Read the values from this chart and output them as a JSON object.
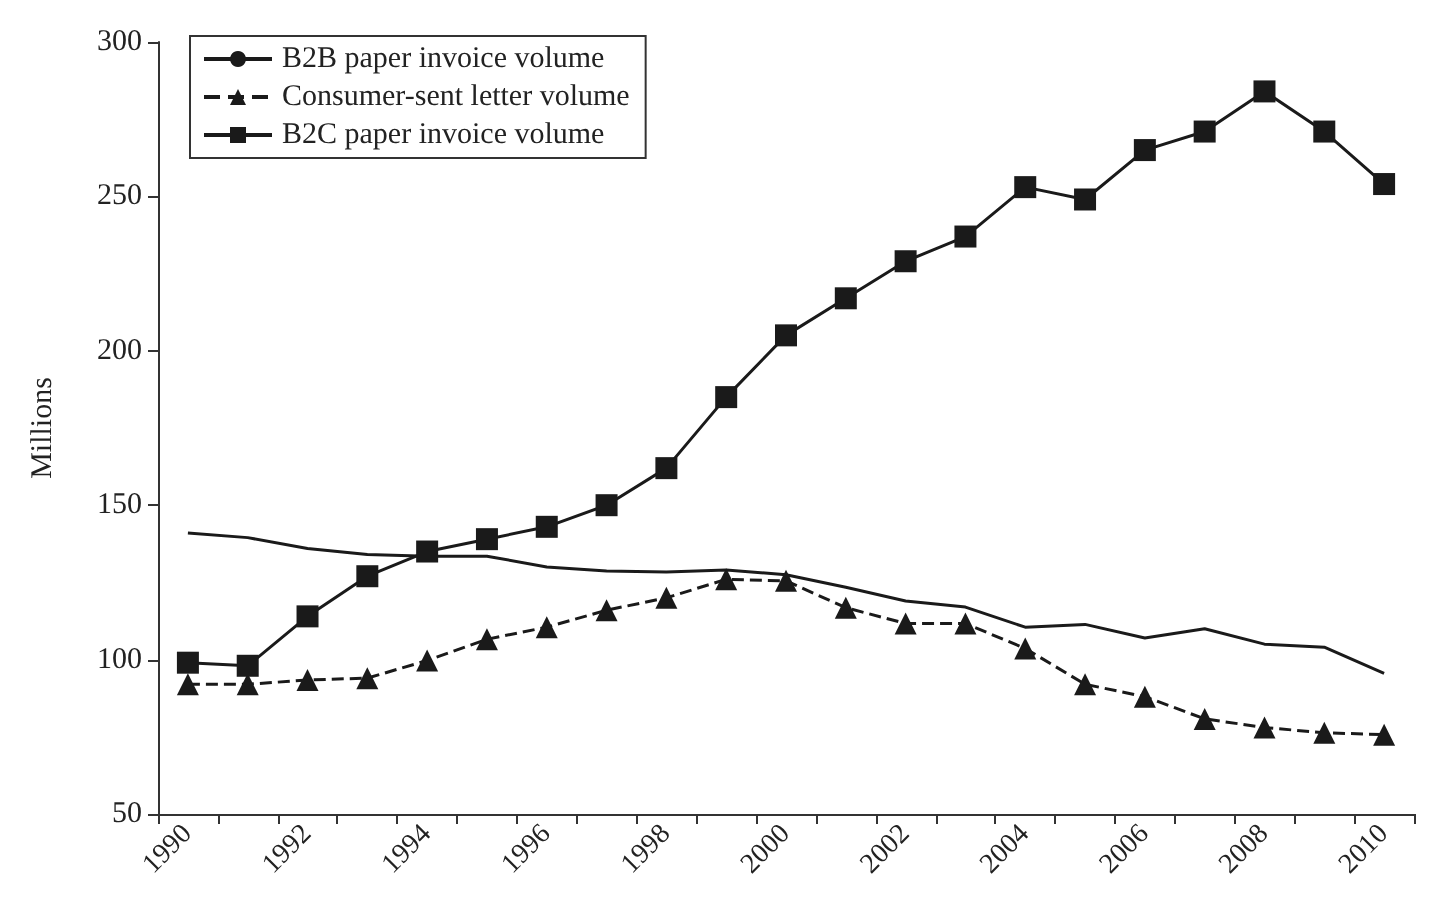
{
  "chart_data": {
    "type": "line",
    "ylabel": "Millions",
    "categories": [
      "1990",
      null,
      "1992",
      null,
      "1994",
      null,
      "1996",
      null,
      "1998",
      null,
      "2000",
      null,
      "2002",
      null,
      "2004",
      null,
      "2006",
      null,
      "2008",
      null,
      "2010"
    ],
    "ylim": [
      50,
      300
    ],
    "yticks": [
      50,
      100,
      150,
      200,
      250,
      300
    ],
    "grid": false,
    "legend": "top left",
    "series": [
      {
        "name": "B2B paper invoice volume",
        "color": "#1a1a1a",
        "marker": "none",
        "line_style": "solid",
        "values": [
          141,
          139.5,
          136,
          134,
          133.5,
          133.5,
          130,
          128.7,
          128.4,
          129,
          127.5,
          123.4,
          119,
          117,
          110.5,
          111.4,
          107,
          110,
          105,
          104,
          95.5
        ]
      },
      {
        "name": "Consumer-sent letter volume",
        "color": "#1a1a1a",
        "marker": "triangle",
        "line_style": "dashed",
        "values": [
          92,
          92,
          93.4,
          94,
          99.7,
          106.6,
          110.5,
          116,
          120,
          126,
          125.5,
          116.8,
          111.7,
          111.7,
          103.6,
          92,
          88,
          80.8,
          78,
          76.3,
          75.7
        ]
      },
      {
        "name": "B2C paper invoice volume",
        "color": "#1a1a1a",
        "marker": "square",
        "line_style": "solid",
        "values": [
          99,
          98,
          114,
          127,
          135,
          139,
          143,
          150,
          162,
          185,
          205,
          217,
          229,
          237,
          253,
          249,
          265,
          271,
          284,
          271,
          254
        ]
      }
    ]
  }
}
